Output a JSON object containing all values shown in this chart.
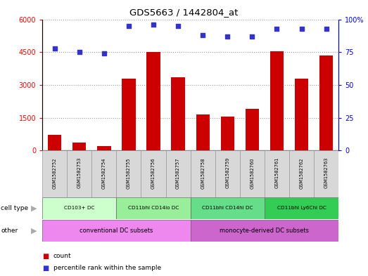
{
  "title": "GDS5663 / 1442804_at",
  "samples": [
    "GSM1582752",
    "GSM1582753",
    "GSM1582754",
    "GSM1582755",
    "GSM1582756",
    "GSM1582757",
    "GSM1582758",
    "GSM1582759",
    "GSM1582760",
    "GSM1582761",
    "GSM1582762",
    "GSM1582763"
  ],
  "counts": [
    700,
    350,
    200,
    3300,
    4500,
    3350,
    1650,
    1550,
    1900,
    4550,
    3300,
    4350
  ],
  "percentiles": [
    78,
    75,
    74,
    95,
    96,
    95,
    88,
    87,
    87,
    93,
    93,
    93
  ],
  "bar_color": "#cc0000",
  "dot_color": "#3333cc",
  "ylim_left": [
    0,
    6000
  ],
  "ylim_right": [
    0,
    100
  ],
  "yticks_left": [
    0,
    1500,
    3000,
    4500,
    6000
  ],
  "yticks_right": [
    0,
    25,
    50,
    75,
    100
  ],
  "cell_types": [
    {
      "label": "CD103+ DC",
      "start": 0,
      "end": 3,
      "color": "#ccffcc"
    },
    {
      "label": "CD11bhi CD14lo DC",
      "start": 3,
      "end": 6,
      "color": "#99ee99"
    },
    {
      "label": "CD11bhi CD14hi DC",
      "start": 6,
      "end": 9,
      "color": "#66dd88"
    },
    {
      "label": "CD11bhi Ly6Chi DC",
      "start": 9,
      "end": 12,
      "color": "#33cc55"
    }
  ],
  "other_groups": [
    {
      "label": "conventional DC subsets",
      "start": 0,
      "end": 6,
      "color": "#ee88ee"
    },
    {
      "label": "monocyte-derived DC subsets",
      "start": 6,
      "end": 12,
      "color": "#cc66cc"
    }
  ],
  "grid_color": "#999999",
  "sample_bg": "#d8d8d8",
  "arrow_color": "#aaaaaa"
}
